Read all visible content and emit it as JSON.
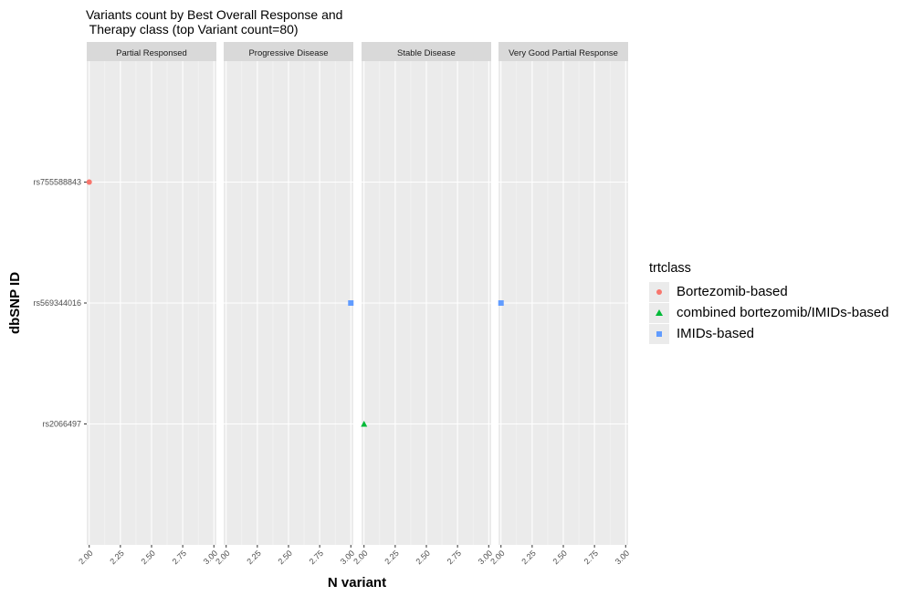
{
  "chart_data": {
    "type": "scatter",
    "title_lines": [
      "Variants count by Best Overall Response and",
      " Therapy class (top Variant count=80)"
    ],
    "xlabel": "N variant",
    "ylabel": "dbSNP ID",
    "xlim": [
      1.98,
      3.02
    ],
    "x_ticks": [
      2.0,
      2.25,
      2.5,
      2.75,
      3.0
    ],
    "x_tick_labels": [
      "2.00",
      "2.25",
      "2.50",
      "2.75",
      "3.00"
    ],
    "y_categories": [
      "rs2066497",
      "rs569344016",
      "rs755588843"
    ],
    "facets": [
      "Partial Responsed",
      "Progressive Disease",
      "Stable Disease",
      "Very Good Partial Response"
    ],
    "legend": {
      "title": "trtclass",
      "position": "right",
      "entries": [
        {
          "name": "Bortezomib-based",
          "color": "#F8766D",
          "shape": "circle"
        },
        {
          "name": "combined bortezomib/IMIDs-based",
          "color": "#00BA38",
          "shape": "triangle"
        },
        {
          "name": "IMIDs-based",
          "color": "#619CFF",
          "shape": "square"
        }
      ]
    },
    "points": [
      {
        "facet": "Partial Responsed",
        "x": 2.0,
        "y": "rs755588843",
        "series": "Bortezomib-based"
      },
      {
        "facet": "Progressive Disease",
        "x": 3.0,
        "y": "rs569344016",
        "series": "IMIDs-based"
      },
      {
        "facet": "Stable Disease",
        "x": 2.0,
        "y": "rs2066497",
        "series": "combined bortezomib/IMIDs-based"
      },
      {
        "facet": "Very Good Partial Response",
        "x": 2.0,
        "y": "rs569344016",
        "series": "IMIDs-based"
      }
    ],
    "grid": true,
    "panel_background": "#EBEBEB",
    "strip_background": "#D9D9D9"
  }
}
